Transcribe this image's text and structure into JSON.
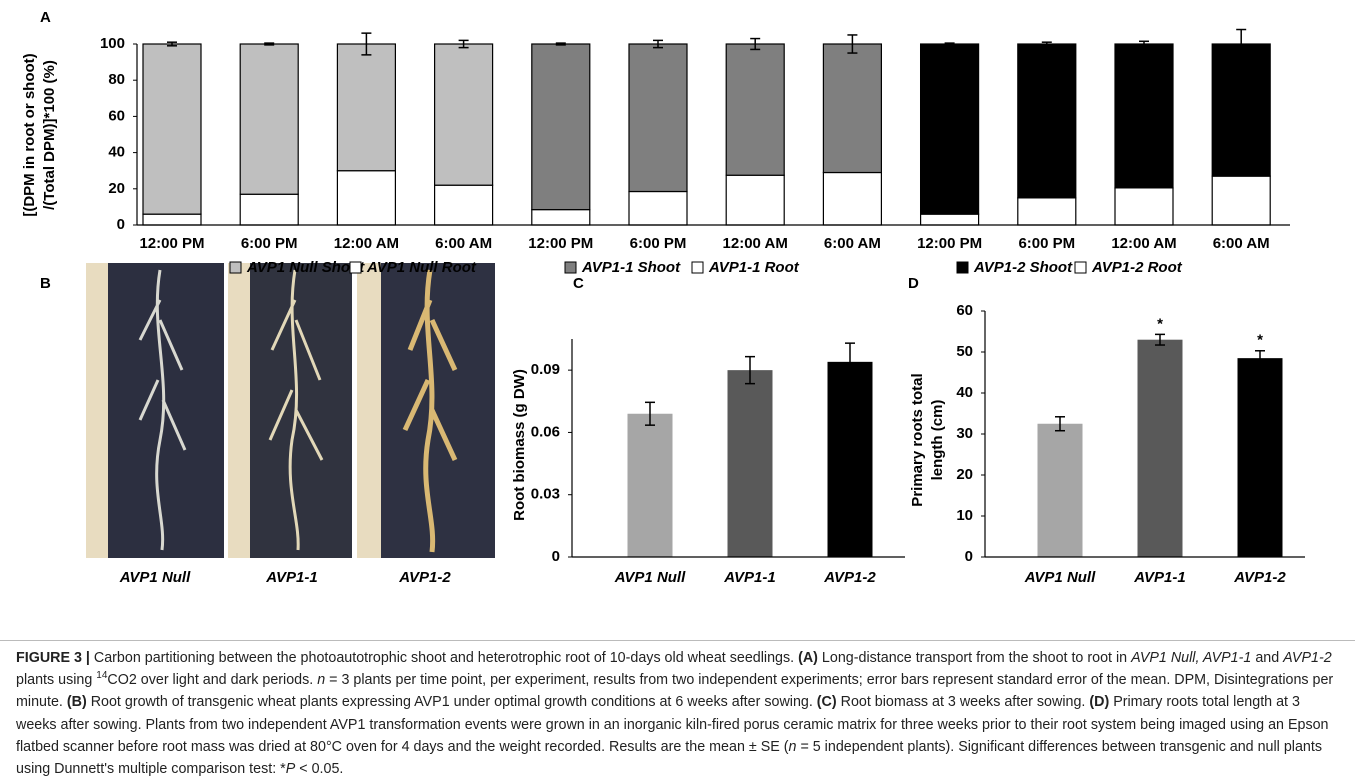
{
  "chart_data": [
    {
      "type": "stacked_bar",
      "panel": "A",
      "y_label": [
        "[(DPM in root or shoot)",
        "/(Total DPM)]*100 (%)"
      ],
      "categories": [
        "12:00 PM",
        "6:00 PM",
        "12:00 AM",
        "6:00 AM",
        "12:00 PM",
        "6:00 PM",
        "12:00 AM",
        "6:00 AM",
        "12:00 PM",
        "6:00 PM",
        "12:00 AM",
        "6:00 AM"
      ],
      "series": [
        {
          "name": "AVP1 Null Root",
          "color": "#ffffff",
          "values": [
            6,
            17,
            30,
            22,
            null,
            null,
            null,
            null,
            null,
            null,
            null,
            null
          ]
        },
        {
          "name": "AVP1 Null Shoot",
          "color": "#bfbfbf",
          "values": [
            94,
            83,
            70,
            78,
            null,
            null,
            null,
            null,
            null,
            null,
            null,
            null
          ],
          "errors": [
            1,
            0.5,
            6,
            2,
            null,
            null,
            null,
            null,
            null,
            null,
            null,
            null
          ]
        },
        {
          "name": "AVP1-1 Root",
          "color": "#ffffff",
          "values": [
            null,
            null,
            null,
            null,
            8.5,
            18.5,
            27.5,
            29,
            null,
            null,
            null,
            null
          ]
        },
        {
          "name": "AVP1-1 Shoot",
          "color": "#7f7f7f",
          "values": [
            null,
            null,
            null,
            null,
            91.5,
            81.5,
            72.5,
            71,
            null,
            null,
            null,
            null
          ],
          "errors": [
            null,
            null,
            null,
            null,
            0.5,
            2,
            3,
            5,
            null,
            null,
            null,
            null
          ]
        },
        {
          "name": "AVP1-2 Root",
          "color": "#ffffff",
          "values": [
            null,
            null,
            null,
            null,
            null,
            null,
            null,
            null,
            6,
            15,
            20.5,
            27
          ]
        },
        {
          "name": "AVP1-2 Shoot",
          "color": "#000000",
          "values": [
            null,
            null,
            null,
            null,
            null,
            null,
            null,
            null,
            94,
            85,
            79.5,
            73
          ],
          "errors": [
            null,
            null,
            null,
            null,
            null,
            null,
            null,
            null,
            0.5,
            1,
            1.5,
            8
          ]
        }
      ],
      "legend_order": [
        1,
        0,
        3,
        2,
        5,
        4
      ],
      "ylim": [
        0,
        100
      ],
      "yticks": [
        0,
        20,
        40,
        60,
        80,
        100
      ]
    },
    {
      "type": "bar",
      "panel": "C",
      "y_label": [
        "Root biomass (g DW)"
      ],
      "categories": [
        "AVP1 Null",
        "AVP1-1",
        "AVP1-2"
      ],
      "values": [
        0.069,
        0.09,
        0.094
      ],
      "errors": [
        0.0055,
        0.0065,
        0.009
      ],
      "colors": [
        "#a6a6a6",
        "#595959",
        "#000000"
      ],
      "ylim": [
        0,
        0.105
      ],
      "yticks": [
        0,
        0.03,
        0.06,
        0.09
      ]
    },
    {
      "type": "bar",
      "panel": "D",
      "y_label": [
        "Primary roots total",
        "length (cm)"
      ],
      "categories": [
        "AVP1 Null",
        "AVP1-1",
        "AVP1-2"
      ],
      "values": [
        32.5,
        53,
        48.5
      ],
      "errors": [
        1.7,
        1.3,
        1.8
      ],
      "colors": [
        "#a6a6a6",
        "#595959",
        "#000000"
      ],
      "annotations": [
        {
          "index": 1,
          "text": "*"
        },
        {
          "index": 2,
          "text": "*"
        }
      ],
      "ylim": [
        0,
        60
      ],
      "yticks": [
        0,
        10,
        20,
        30,
        40,
        50,
        60
      ]
    }
  ],
  "panel_b": {
    "panel": "B",
    "labels": [
      "AVP1 Null",
      "AVP1-1",
      "AVP1-2"
    ]
  },
  "caption": [
    {
      "style": "bold",
      "text": "FIGURE 3 |"
    },
    {
      "style": "normal",
      "text": " Carbon partitioning between the photoautotrophic shoot and heterotrophic root of 10-days old wheat seedlings. "
    },
    {
      "style": "bold",
      "text": "(A)"
    },
    {
      "style": "normal",
      "text": " Long-distance transport from the shoot to root in "
    },
    {
      "style": "italic",
      "text": "AVP1 Null, AVP1-1"
    },
    {
      "style": "normal",
      "text": " and "
    },
    {
      "style": "italic",
      "text": "AVP1-2"
    },
    {
      "style": "normal",
      "text": " plants using "
    },
    {
      "style": "sup",
      "text": "14"
    },
    {
      "style": "normal",
      "text": "CO2 over light and dark periods. "
    },
    {
      "style": "italic",
      "text": "n"
    },
    {
      "style": "normal",
      "text": " = 3 plants per time point, per experiment, results from two independent experiments; error bars represent standard error of the mean. DPM, Disintegrations per minute. "
    },
    {
      "style": "bold",
      "text": "(B)"
    },
    {
      "style": "normal",
      "text": " Root growth of transgenic wheat plants expressing AVP1 under optimal growth conditions at 6 weeks after sowing. "
    },
    {
      "style": "bold",
      "text": "(C)"
    },
    {
      "style": "normal",
      "text": " Root biomass at 3 weeks after sowing. "
    },
    {
      "style": "bold",
      "text": "(D)"
    },
    {
      "style": "normal",
      "text": " Primary roots total length at 3 weeks after sowing. Plants from two independent AVP1 transformation events were grown in an inorganic kiln-fired porus ceramic matrix for three weeks prior to their root system being imaged using an Epson flatbed scanner before root mass was dried at 80°C oven for 4 days and the weight recorded. Results are the mean ± SE ("
    },
    {
      "style": "italic",
      "text": "n"
    },
    {
      "style": "normal",
      "text": " = 5 independent plants). Significant differences between transgenic and null plants using Dunnett's multiple comparison test: *"
    },
    {
      "style": "italic",
      "text": "P"
    },
    {
      "style": "normal",
      "text": " < 0.05."
    }
  ]
}
